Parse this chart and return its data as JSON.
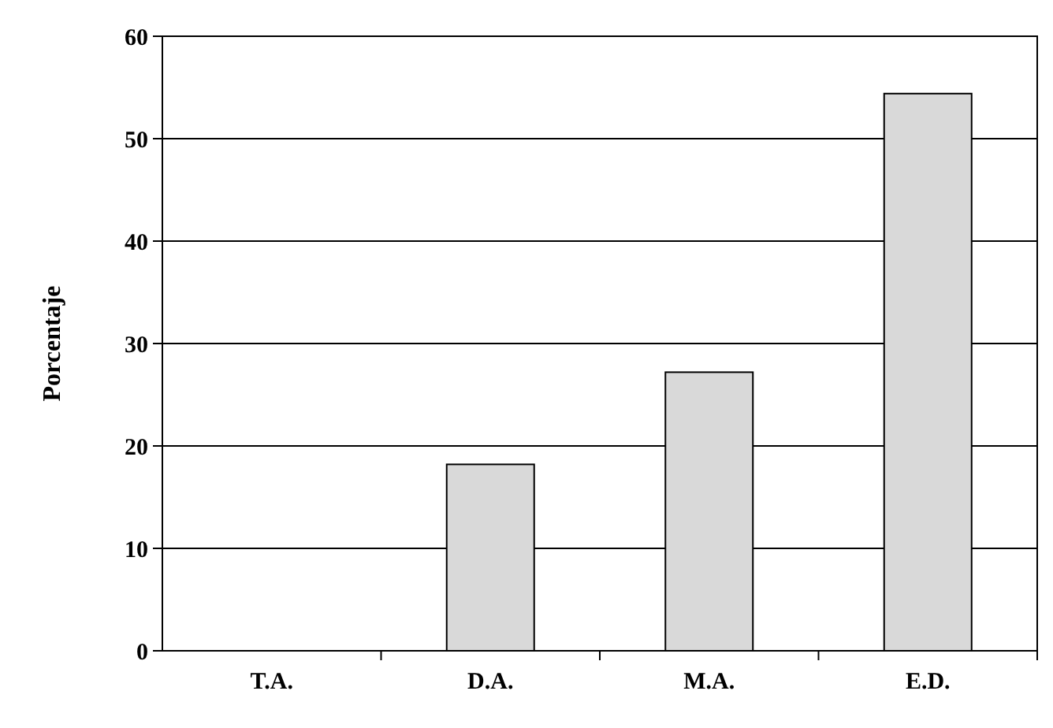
{
  "chart_data": {
    "type": "bar",
    "ylabel": "Porcentaje",
    "categories": [
      "T.A.",
      "D.A.",
      "M.A.",
      "E.D."
    ],
    "values": [
      0,
      18.2,
      27.2,
      54.4
    ],
    "color": "#d9d9d9",
    "ylim": [
      0,
      60
    ],
    "yticks": [
      0,
      10,
      20,
      30,
      40,
      50,
      60
    ],
    "grid": "y"
  }
}
